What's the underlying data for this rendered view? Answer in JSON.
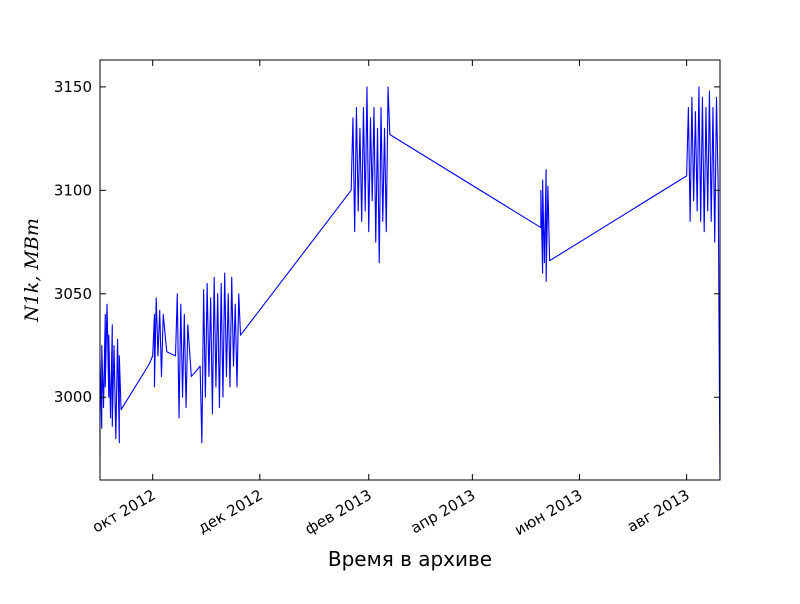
{
  "chart_data": {
    "type": "line",
    "title": "",
    "xlabel": "Время в архиве",
    "ylabel": "N1k, MBm",
    "ylim": [
      2960,
      3163
    ],
    "xlim": [
      "2012-09-01",
      "2013-08-20"
    ],
    "grid": false,
    "x_tick_labels": [
      {
        "date": "2012-10-01",
        "label": "окт 2012"
      },
      {
        "date": "2012-12-01",
        "label": "дек 2012"
      },
      {
        "date": "2013-02-01",
        "label": "фев 2013"
      },
      {
        "date": "2013-04-01",
        "label": "апр 2013"
      },
      {
        "date": "2013-06-01",
        "label": "июн 2013"
      },
      {
        "date": "2013-08-01",
        "label": "авг 2013"
      }
    ],
    "y_tick_labels": [
      3000,
      3050,
      3100,
      3150
    ],
    "series": [
      {
        "color": "#0000ff",
        "points": [
          [
            "2012-09-01",
            2972
          ],
          [
            "2012-09-01",
            3018
          ],
          [
            "2012-09-02",
            2985
          ],
          [
            "2012-09-02",
            3025
          ],
          [
            "2012-09-03",
            2995
          ],
          [
            "2012-09-04",
            3040
          ],
          [
            "2012-09-04",
            3005
          ],
          [
            "2012-09-05",
            3045
          ],
          [
            "2012-09-06",
            3000
          ],
          [
            "2012-09-06",
            3030
          ],
          [
            "2012-09-07",
            2990
          ],
          [
            "2012-09-08",
            3035
          ],
          [
            "2012-09-08",
            2986
          ],
          [
            "2012-09-09",
            3025
          ],
          [
            "2012-09-10",
            2980
          ],
          [
            "2012-09-11",
            3028
          ],
          [
            "2012-09-12",
            2978
          ],
          [
            "2012-09-12",
            3020
          ],
          [
            "2012-09-13",
            2994
          ],
          [
            "2012-09-29",
            3016
          ],
          [
            "2012-10-01",
            3020
          ],
          [
            "2012-10-02",
            3040
          ],
          [
            "2012-10-02",
            3005
          ],
          [
            "2012-10-03",
            3048
          ],
          [
            "2012-10-04",
            3020
          ],
          [
            "2012-10-05",
            3042
          ],
          [
            "2012-10-06",
            3010
          ],
          [
            "2012-10-07",
            3040
          ],
          [
            "2012-10-09",
            3022
          ],
          [
            "2012-10-14",
            3020
          ],
          [
            "2012-10-15",
            3050
          ],
          [
            "2012-10-16",
            2990
          ],
          [
            "2012-10-17",
            3045
          ],
          [
            "2012-10-18",
            3000
          ],
          [
            "2012-10-19",
            3040
          ],
          [
            "2012-10-20",
            2995
          ],
          [
            "2012-10-21",
            3035
          ],
          [
            "2012-10-23",
            3010
          ],
          [
            "2012-10-28",
            3015
          ],
          [
            "2012-10-29",
            2978
          ],
          [
            "2012-10-30",
            3052
          ],
          [
            "2012-10-31",
            3000
          ],
          [
            "2012-11-01",
            3055
          ],
          [
            "2012-11-02",
            3010
          ],
          [
            "2012-11-03",
            3048
          ],
          [
            "2012-11-04",
            2992
          ],
          [
            "2012-11-05",
            3058
          ],
          [
            "2012-11-06",
            3005
          ],
          [
            "2012-11-07",
            3050
          ],
          [
            "2012-11-08",
            2995
          ],
          [
            "2012-11-09",
            3055
          ],
          [
            "2012-11-10",
            3000
          ],
          [
            "2012-11-11",
            3060
          ],
          [
            "2012-11-12",
            3010
          ],
          [
            "2012-11-13",
            3050
          ],
          [
            "2012-11-14",
            3005
          ],
          [
            "2012-11-15",
            3058
          ],
          [
            "2012-11-16",
            3015
          ],
          [
            "2012-11-17",
            3045
          ],
          [
            "2012-11-18",
            3005
          ],
          [
            "2012-11-19",
            3050
          ],
          [
            "2012-11-20",
            3030
          ],
          [
            "2013-01-22",
            3100
          ],
          [
            "2013-01-23",
            3135
          ],
          [
            "2013-01-24",
            3080
          ],
          [
            "2013-01-25",
            3140
          ],
          [
            "2013-01-26",
            3090
          ],
          [
            "2013-01-27",
            3130
          ],
          [
            "2013-01-28",
            3085
          ],
          [
            "2013-01-29",
            3140
          ],
          [
            "2013-01-30",
            3090
          ],
          [
            "2013-01-31",
            3150
          ],
          [
            "2013-02-01",
            3080
          ],
          [
            "2013-02-02",
            3135
          ],
          [
            "2013-02-03",
            3095
          ],
          [
            "2013-02-04",
            3140
          ],
          [
            "2013-02-05",
            3075
          ],
          [
            "2013-02-06",
            3130
          ],
          [
            "2013-02-07",
            3065
          ],
          [
            "2013-02-08",
            3140
          ],
          [
            "2013-02-09",
            3085
          ],
          [
            "2013-02-10",
            3130
          ],
          [
            "2013-02-11",
            3080
          ],
          [
            "2013-02-12",
            3150
          ],
          [
            "2013-02-13",
            3127
          ],
          [
            "2013-05-10",
            3082
          ],
          [
            "2013-05-10",
            3100
          ],
          [
            "2013-05-11",
            3060
          ],
          [
            "2013-05-11",
            3105
          ],
          [
            "2013-05-12",
            3065
          ],
          [
            "2013-05-13",
            3110
          ],
          [
            "2013-05-13",
            3056
          ],
          [
            "2013-05-14",
            3102
          ],
          [
            "2013-05-15",
            3066
          ],
          [
            "2013-08-01",
            3107
          ],
          [
            "2013-08-02",
            3140
          ],
          [
            "2013-08-03",
            3085
          ],
          [
            "2013-08-04",
            3145
          ],
          [
            "2013-08-05",
            3095
          ],
          [
            "2013-08-06",
            3138
          ],
          [
            "2013-08-07",
            3090
          ],
          [
            "2013-08-08",
            3150
          ],
          [
            "2013-08-09",
            3085
          ],
          [
            "2013-08-10",
            3145
          ],
          [
            "2013-08-11",
            3080
          ],
          [
            "2013-08-12",
            3140
          ],
          [
            "2013-08-13",
            3090
          ],
          [
            "2013-08-14",
            3148
          ],
          [
            "2013-08-15",
            3085
          ],
          [
            "2013-08-16",
            3140
          ],
          [
            "2013-08-17",
            3075
          ],
          [
            "2013-08-18",
            3145
          ],
          [
            "2013-08-19",
            3100
          ],
          [
            "2013-08-20",
            2960
          ]
        ]
      }
    ]
  }
}
